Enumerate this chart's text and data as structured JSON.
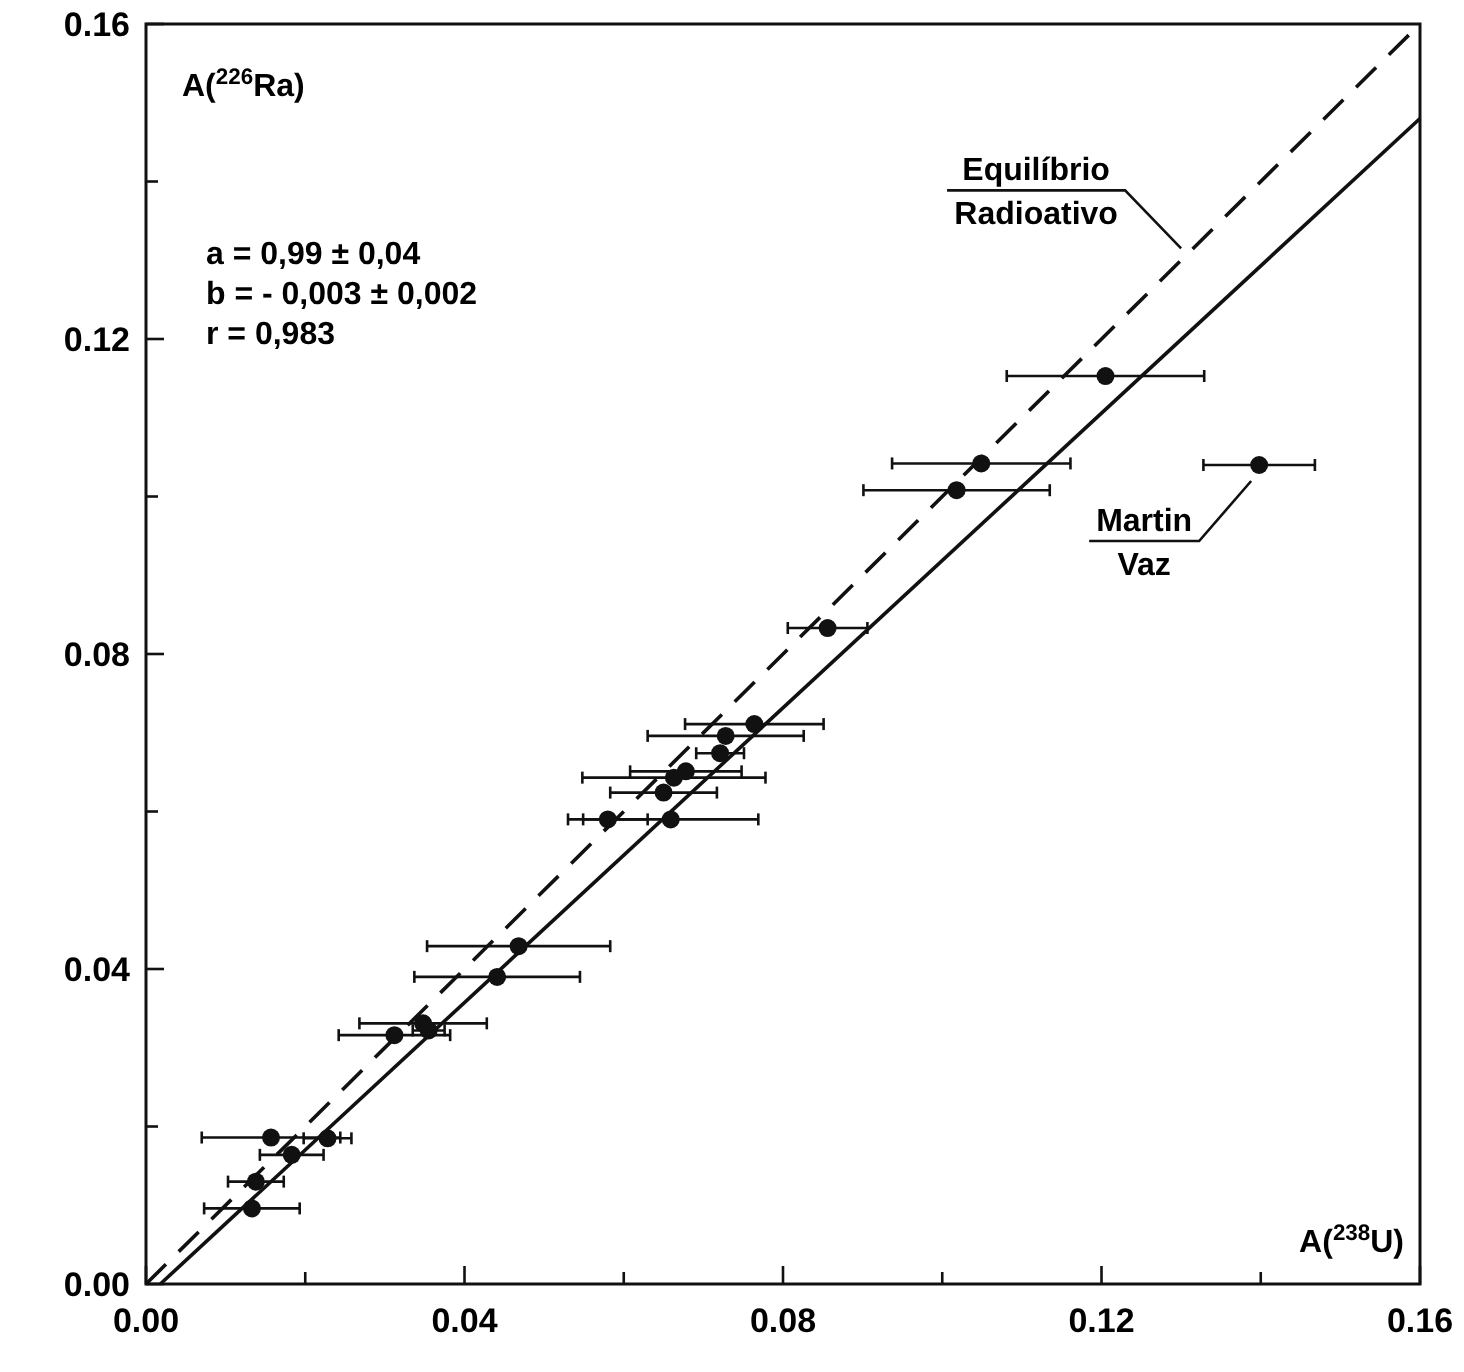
{
  "chart_data": {
    "type": "scatter",
    "xlabel": "A($^{238}$U)",
    "ylabel": "A($^{226}$Ra)",
    "xlim": [
      0,
      0.16
    ],
    "ylim": [
      0,
      0.16
    ],
    "xticks": [
      {
        "value": 0,
        "label": "0.00"
      },
      {
        "value": 0.02,
        "label": null
      },
      {
        "value": 0.04,
        "label": "0.04"
      },
      {
        "value": 0.06,
        "label": null
      },
      {
        "value": 0.08,
        "label": "0.08"
      },
      {
        "value": 0.1,
        "label": null
      },
      {
        "value": 0.12,
        "label": "0.12"
      },
      {
        "value": 0.14,
        "label": null
      },
      {
        "value": 0.16,
        "label": "0.16"
      }
    ],
    "yticks": [
      {
        "value": 0,
        "label": "0.00"
      },
      {
        "value": 0.02,
        "label": null
      },
      {
        "value": 0.04,
        "label": "0.04"
      },
      {
        "value": 0.06,
        "label": null
      },
      {
        "value": 0.08,
        "label": "0.08"
      },
      {
        "value": 0.1,
        "label": null
      },
      {
        "value": 0.12,
        "label": "0.12"
      },
      {
        "value": 0.14,
        "label": null
      },
      {
        "value": 0.16,
        "label": "0.16"
      }
    ],
    "grid": false,
    "series": [
      {
        "color": "#111111",
        "marker": "circle",
        "x": [
          0.0157,
          0.0228,
          0.0183,
          0.0138,
          0.0133,
          0.0312,
          0.0348,
          0.0355,
          0.0441,
          0.0468,
          0.058,
          0.0659,
          0.065,
          0.0663,
          0.0678,
          0.0721,
          0.0728,
          0.0764,
          0.0856,
          0.1205,
          0.1049,
          0.1018,
          0.1398
        ],
        "values": [
          0.0186,
          0.0185,
          0.0164,
          0.013,
          0.0096,
          0.0316,
          0.0331,
          0.0322,
          0.039,
          0.0429,
          0.059,
          0.059,
          0.0624,
          0.0643,
          0.0651,
          0.0674,
          0.0696,
          0.0711,
          0.0833,
          0.1153,
          0.1042,
          0.1008,
          0.104
        ],
        "xerrors": [
          0.0087,
          0.003,
          0.004,
          0.0035,
          0.006,
          0.007,
          0.008,
          0.002,
          0.0104,
          0.0115,
          0.005,
          0.011,
          0.0067,
          0.0115,
          0.007,
          0.003,
          0.0098,
          0.0087,
          0.005,
          0.0124,
          0.0112,
          0.0117,
          0.007
        ]
      },
      {
        "type": "line",
        "color": "#111111",
        "line_style": "dashed",
        "x": [
          0,
          0.16
        ],
        "values": [
          0,
          0.16
        ]
      },
      {
        "type": "line",
        "color": "#111111",
        "line_style": "solid",
        "x": [
          0.0018,
          0.16
        ],
        "values": [
          0,
          0.148
        ]
      }
    ],
    "annotations": [
      "a = 0,99 ± 0,04",
      "b = - 0,003 ± 0,002",
      "r = 0,983",
      {
        "text": "Equilíbrio Radioativo",
        "x": 0.131,
        "y": 0.131
      },
      {
        "text": "Martin Vaz",
        "x": 0.1398,
        "y": 0.104
      }
    ]
  }
}
